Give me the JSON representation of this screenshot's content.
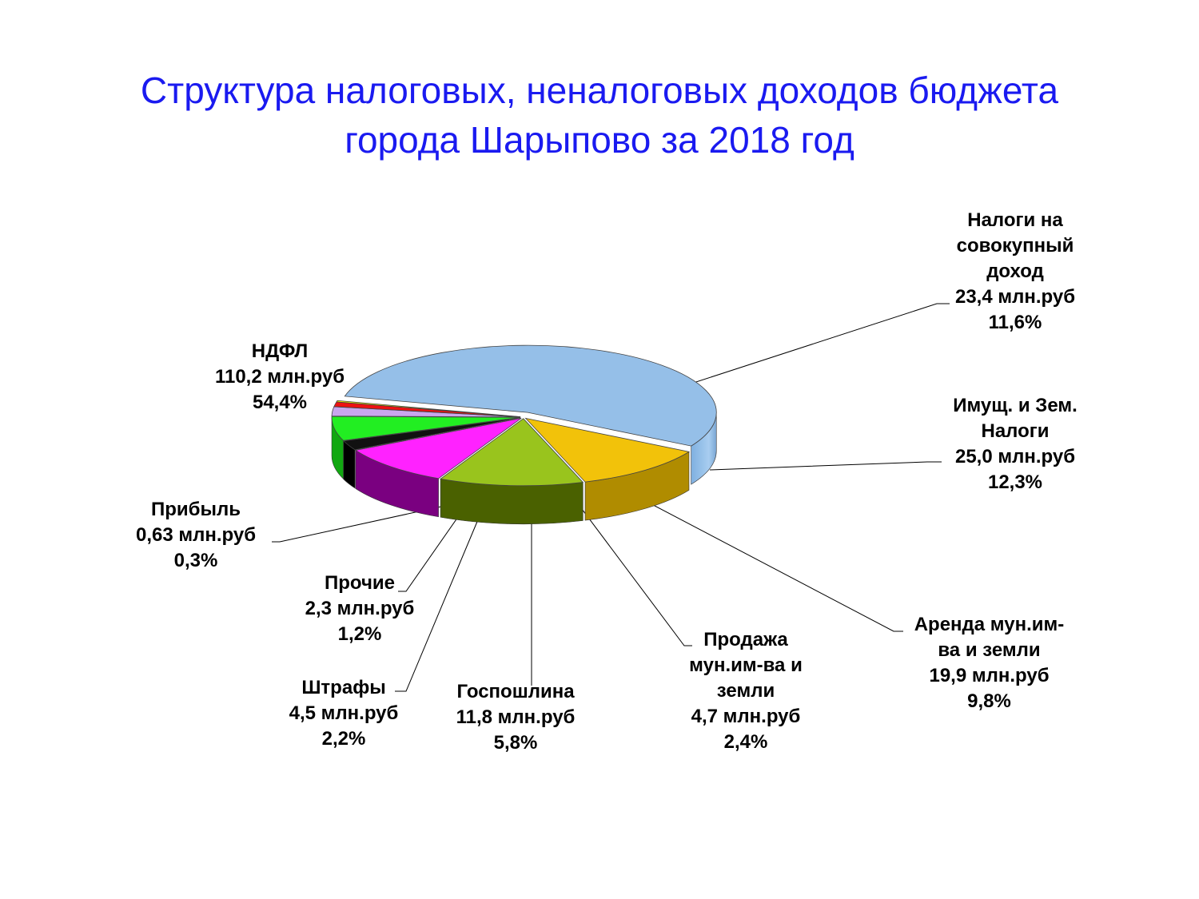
{
  "title": {
    "line1": "Структура налоговых, неналоговых доходов бюджета",
    "line2": "города Шарыпово за 2018 год"
  },
  "chart_data": {
    "type": "pie",
    "style": "3d-exploded",
    "title": "Структура налоговых, неналоговых доходов бюджета города Шарыпово за 2018 год",
    "slices": [
      {
        "key": "ndfl",
        "label_lines": [
          "НДФЛ"
        ],
        "amount_text": "110,2 млн.руб",
        "percent_text": "54,4%",
        "value": 110.2,
        "percent": 54.4,
        "color": "#95bfe8",
        "side_color": "#6f9fd0"
      },
      {
        "key": "sovokupny",
        "label_lines": [
          "Налоги на",
          "совокупный",
          "доход"
        ],
        "amount_text": "23,4 млн.руб",
        "percent_text": "11,6%",
        "value": 23.4,
        "percent": 11.6,
        "color": "#f2c20a",
        "side_color": "#b08c00"
      },
      {
        "key": "imusch",
        "label_lines": [
          "Имущ. и Зем.",
          "Налоги"
        ],
        "amount_text": "25,0 млн.руб",
        "percent_text": "12,3%",
        "value": 25.0,
        "percent": 12.3,
        "color": "#99c41d",
        "side_color": "#4a6100"
      },
      {
        "key": "arenda",
        "label_lines": [
          "Аренда мун.им-",
          "ва и земли"
        ],
        "amount_text": "19,9 млн.руб",
        "percent_text": "9,8%",
        "value": 19.9,
        "percent": 9.8,
        "color": "#ff22ff",
        "side_color": "#7a0080"
      },
      {
        "key": "prodazha",
        "label_lines": [
          "Продажа",
          "мун.им-ва и",
          "земли"
        ],
        "amount_text": "4,7 млн.руб",
        "percent_text": "2,4%",
        "value": 4.7,
        "percent": 2.4,
        "color": "#111111",
        "side_color": "#000000"
      },
      {
        "key": "gosposhlina",
        "label_lines": [
          "Госпошлина"
        ],
        "amount_text": "11,8 млн.руб",
        "percent_text": "5,8%",
        "value": 11.8,
        "percent": 5.8,
        "color": "#22ee22",
        "side_color": "#11a811"
      },
      {
        "key": "shtrafy",
        "label_lines": [
          "Штрафы"
        ],
        "amount_text": "4,5 млн.руб",
        "percent_text": "2,2%",
        "value": 4.5,
        "percent": 2.2,
        "color": "#c9a6ee",
        "side_color": "#9a78c8"
      },
      {
        "key": "prochie",
        "label_lines": [
          "Прочие"
        ],
        "amount_text": "2,3 млн.руб",
        "percent_text": "1,2%",
        "value": 2.3,
        "percent": 1.2,
        "color": "#ee1111",
        "side_color": "#b00000"
      },
      {
        "key": "pribyl",
        "label_lines": [
          "Прибыль"
        ],
        "amount_text": "0,63 млн.руб",
        "percent_text": "0,3%",
        "value": 0.63,
        "percent": 0.3,
        "color": "#f4f000",
        "side_color": "#c8c200"
      }
    ]
  }
}
